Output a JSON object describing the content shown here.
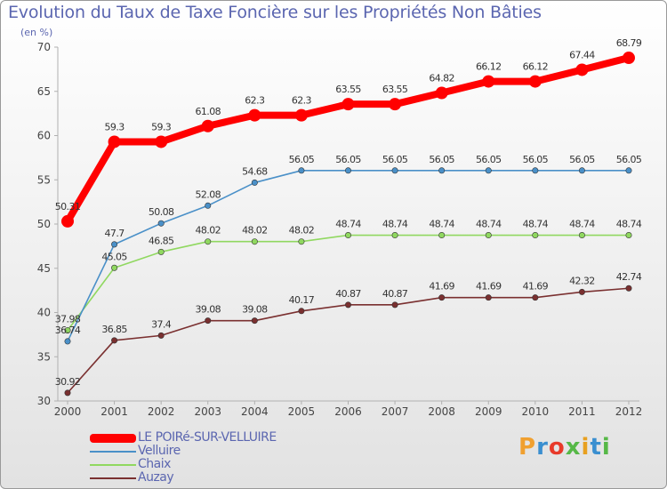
{
  "title": "Evolution du Taux de Taxe Foncière sur les Propriétés Non Bâties",
  "unit": "(en %)",
  "logo": "Proxiti",
  "logo_colors": [
    "#f0a030",
    "#3a8fd0",
    "#e83a2a",
    "#56b847",
    "#e8a020",
    "#3a8fd0",
    "#56b847"
  ],
  "chart_data": {
    "type": "line",
    "x": [
      2000,
      2001,
      2002,
      2003,
      2004,
      2005,
      2006,
      2007,
      2008,
      2009,
      2010,
      2011,
      2012
    ],
    "ylim": [
      30,
      70
    ],
    "yticks": [
      30,
      35,
      40,
      45,
      50,
      55,
      60,
      65,
      70
    ],
    "grid": false,
    "legend_position": "bottom-left",
    "series": [
      {
        "name": "LE POIRé-SUR-VELLUIRE",
        "color": "#ff0000",
        "labels": [
          "50.31",
          "59.3",
          "59.3",
          "61.08",
          "62.3",
          "62.3",
          "63.55",
          "63.55",
          "64.82",
          "66.12",
          "66.12",
          "67.44",
          "68.79"
        ],
        "values": [
          50.31,
          59.3,
          59.3,
          61.08,
          62.3,
          62.3,
          63.55,
          63.55,
          64.82,
          66.12,
          66.12,
          67.44,
          68.79
        ]
      },
      {
        "name": "Velluire",
        "color": "#4a90c8",
        "labels": [
          "36.74",
          "47.7",
          "50.08",
          "52.08",
          "54.68",
          "56.05",
          "56.05",
          "56.05",
          "56.05",
          "56.05",
          "56.05",
          "56.05",
          "56.05"
        ],
        "values": [
          36.74,
          47.7,
          50.08,
          52.08,
          54.68,
          56.05,
          56.05,
          56.05,
          56.05,
          56.05,
          56.05,
          56.05,
          56.05
        ]
      },
      {
        "name": "Chaix",
        "color": "#90d860",
        "labels": [
          "37.98",
          "45.05",
          "46.85",
          "48.02",
          "48.02",
          "48.02",
          "48.74",
          "48.74",
          "48.74",
          "48.74",
          "48.74",
          "48.74",
          "48.74"
        ],
        "values": [
          37.98,
          45.05,
          46.85,
          48.02,
          48.02,
          48.02,
          48.74,
          48.74,
          48.74,
          48.74,
          48.74,
          48.74,
          48.74
        ]
      },
      {
        "name": "Auzay",
        "color": "#7a3030",
        "labels": [
          "30.92",
          "36.85",
          "37.4",
          "39.08",
          "39.08",
          "40.17",
          "40.87",
          "40.87",
          "41.69",
          "41.69",
          "41.69",
          "42.32",
          "42.74"
        ],
        "values": [
          30.92,
          36.85,
          37.4,
          39.08,
          39.08,
          40.17,
          40.87,
          40.87,
          41.69,
          41.69,
          41.69,
          42.32,
          42.74
        ]
      }
    ]
  }
}
